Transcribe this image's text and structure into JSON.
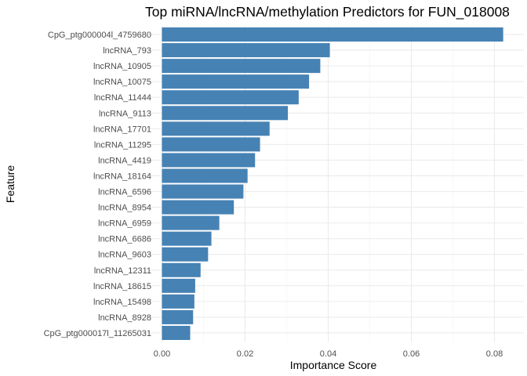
{
  "chart_data": {
    "type": "bar",
    "orientation": "horizontal",
    "title": "Top miRNA/lncRNA/methylation Predictors for FUN_018008",
    "xlabel": "Importance Score",
    "ylabel": "Feature",
    "xlim": [
      0,
      0.0835
    ],
    "x_ticks": [
      "0.00",
      "0.02",
      "0.04",
      "0.06",
      "0.08"
    ],
    "x_tick_values": [
      0,
      0.02,
      0.04,
      0.06,
      0.08
    ],
    "grid": true,
    "bar_color": "#4682B4",
    "categories": [
      "CpG_ptg000004l_4759680",
      "lncRNA_793",
      "lncRNA_10905",
      "lncRNA_10075",
      "lncRNA_11444",
      "lncRNA_9113",
      "lncRNA_17701",
      "lncRNA_11295",
      "lncRNA_4419",
      "lncRNA_18164",
      "lncRNA_6596",
      "lncRNA_8954",
      "lncRNA_6959",
      "lncRNA_6686",
      "lncRNA_9603",
      "lncRNA_12311",
      "lncRNA_18615",
      "lncRNA_15498",
      "lncRNA_8928",
      "CpG_ptg000017l_11265031"
    ],
    "values": [
      0.0821,
      0.0404,
      0.0381,
      0.0354,
      0.0329,
      0.0303,
      0.0259,
      0.0236,
      0.0224,
      0.0206,
      0.0196,
      0.0173,
      0.0138,
      0.0119,
      0.0111,
      0.0093,
      0.008,
      0.0078,
      0.0075,
      0.0068
    ]
  }
}
